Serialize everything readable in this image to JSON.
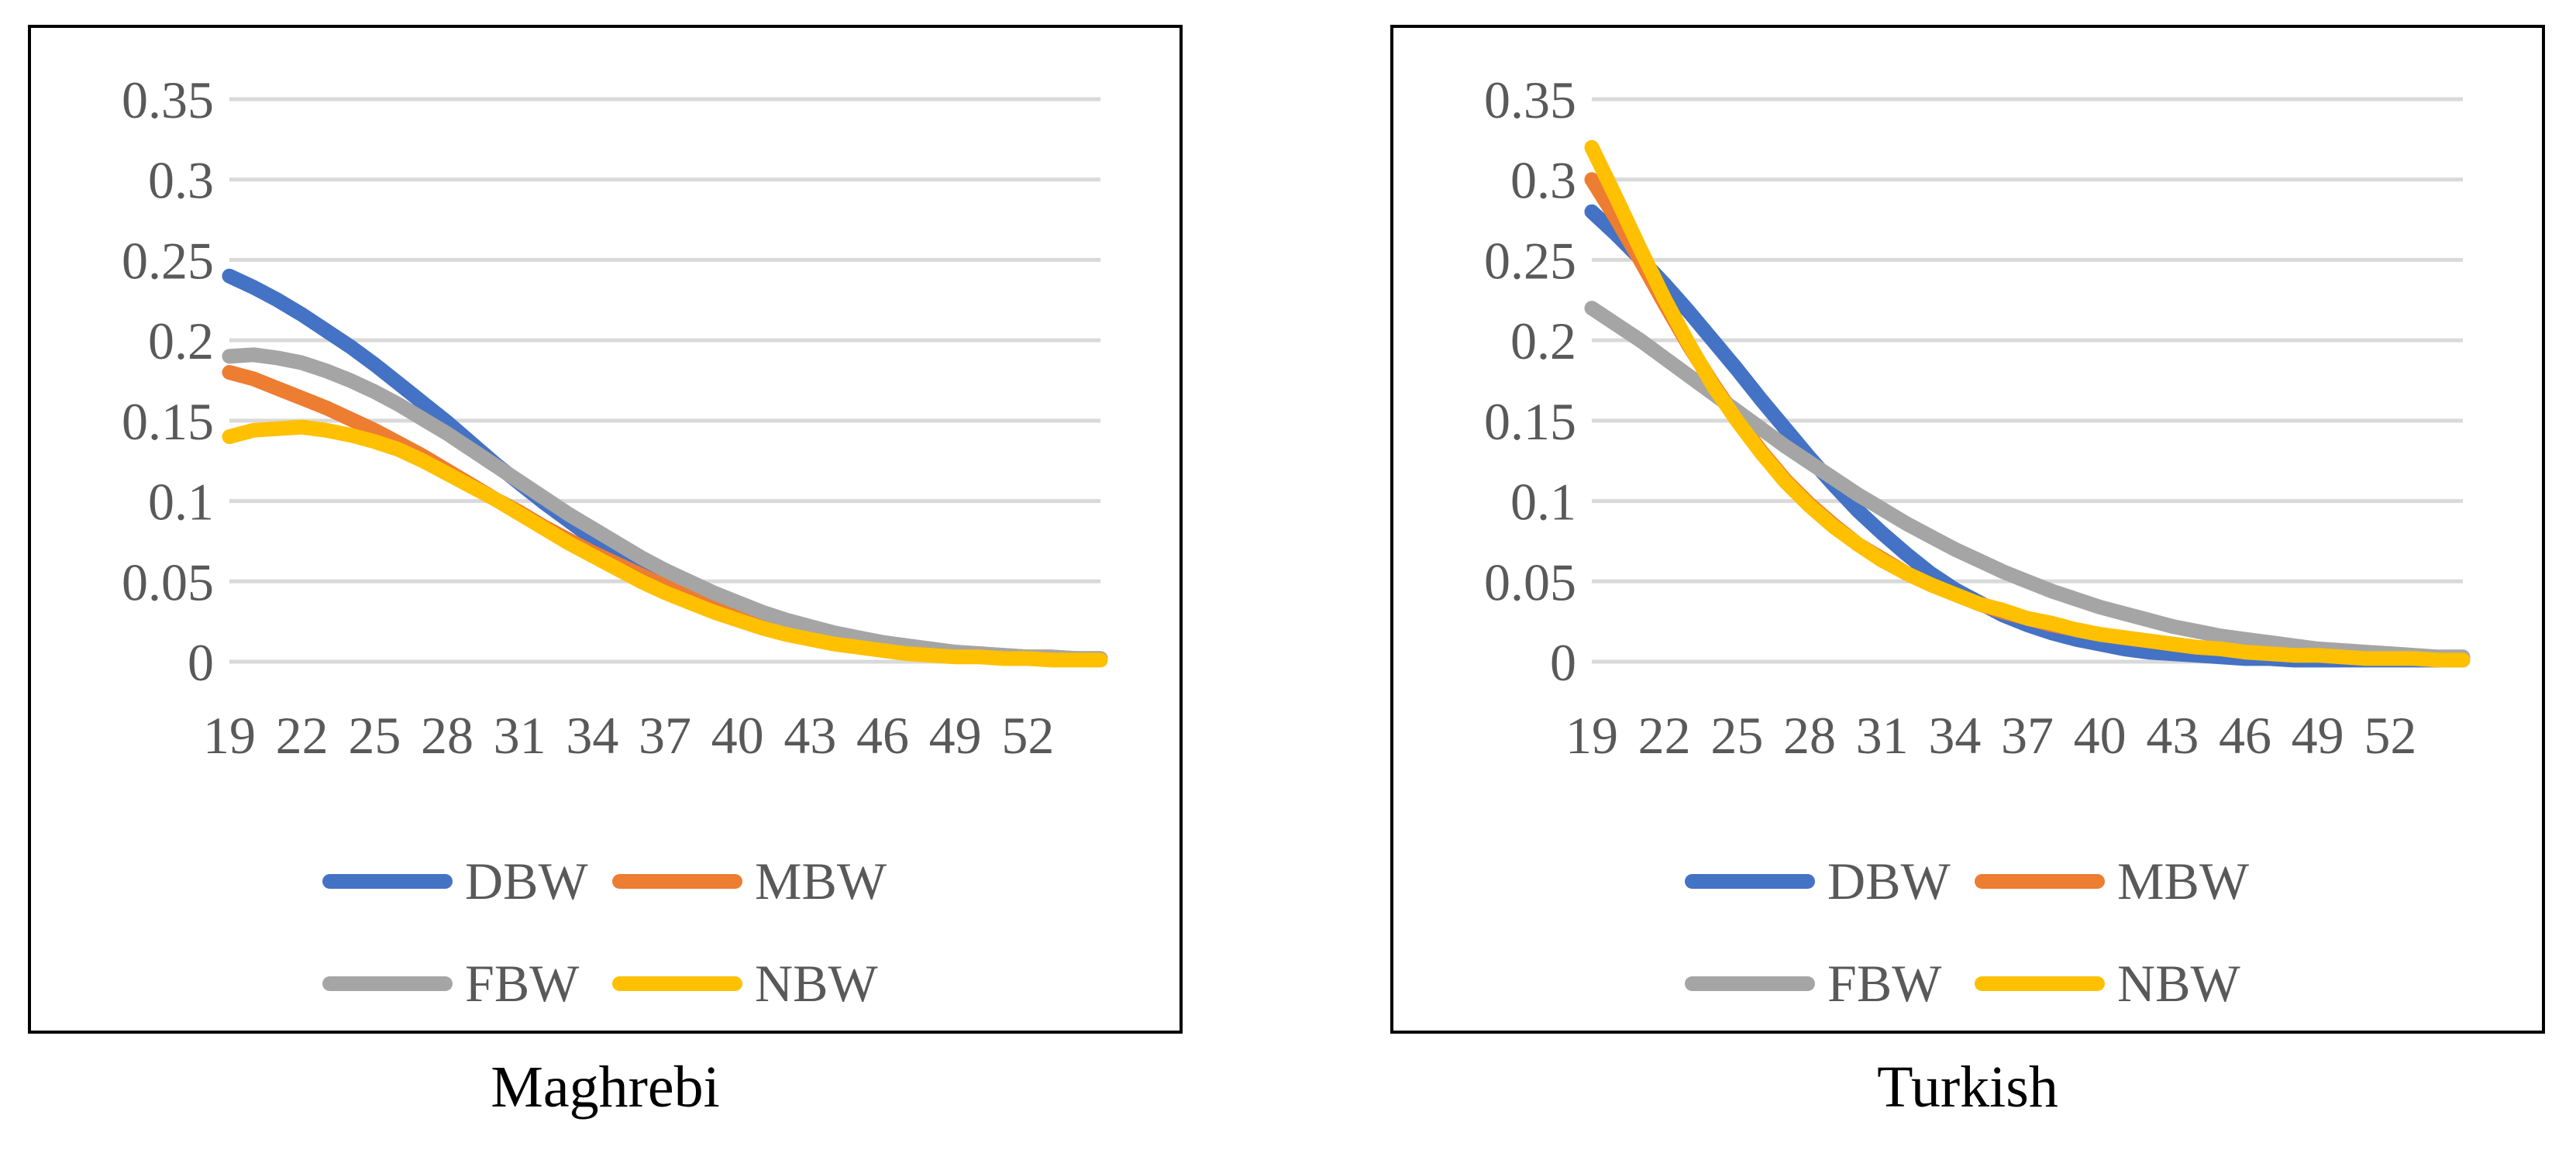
{
  "chart_data": [
    {
      "type": "line",
      "title": "Maghrebi",
      "xlabel": "",
      "ylabel": "",
      "x": [
        19,
        20,
        21,
        22,
        23,
        24,
        25,
        26,
        27,
        28,
        29,
        30,
        31,
        32,
        33,
        34,
        35,
        36,
        37,
        38,
        39,
        40,
        41,
        42,
        43,
        44,
        45,
        46,
        47,
        48,
        49,
        50,
        51,
        52,
        53,
        54,
        55
      ],
      "x_tick_labels": [
        "19",
        "22",
        "25",
        "28",
        "31",
        "34",
        "37",
        "40",
        "43",
        "46",
        "49",
        "52"
      ],
      "y_tick_labels": [
        "0",
        "0.05",
        "0.1",
        "0.15",
        "0.2",
        "0.25",
        "0.3",
        "0.35"
      ],
      "ylim": [
        0,
        0.35
      ],
      "grid": true,
      "legend_position": "bottom",
      "series": [
        {
          "name": "DBW",
          "color": "#4472C4",
          "values": [
            0.24,
            0.233,
            0.225,
            0.216,
            0.206,
            0.196,
            0.185,
            0.173,
            0.161,
            0.149,
            0.136,
            0.123,
            0.111,
            0.099,
            0.088,
            0.077,
            0.067,
            0.058,
            0.05,
            0.043,
            0.036,
            0.03,
            0.025,
            0.021,
            0.017,
            0.014,
            0.011,
            0.009,
            0.007,
            0.006,
            0.005,
            0.004,
            0.003,
            0.003,
            0.002,
            0.002,
            0.002
          ]
        },
        {
          "name": "MBW",
          "color": "#ED7D31",
          "values": [
            0.18,
            0.176,
            0.17,
            0.164,
            0.158,
            0.151,
            0.144,
            0.136,
            0.128,
            0.119,
            0.11,
            0.101,
            0.093,
            0.084,
            0.076,
            0.068,
            0.061,
            0.054,
            0.047,
            0.041,
            0.036,
            0.031,
            0.026,
            0.022,
            0.019,
            0.016,
            0.013,
            0.011,
            0.009,
            0.007,
            0.006,
            0.005,
            0.004,
            0.003,
            0.003,
            0.002,
            0.002
          ]
        },
        {
          "name": "FBW",
          "color": "#A5A5A5",
          "values": [
            0.19,
            0.191,
            0.189,
            0.186,
            0.181,
            0.175,
            0.168,
            0.16,
            0.151,
            0.142,
            0.132,
            0.122,
            0.112,
            0.102,
            0.092,
            0.083,
            0.074,
            0.065,
            0.057,
            0.05,
            0.043,
            0.037,
            0.031,
            0.026,
            0.022,
            0.018,
            0.015,
            0.012,
            0.01,
            0.008,
            0.006,
            0.005,
            0.004,
            0.003,
            0.003,
            0.002,
            0.002
          ]
        },
        {
          "name": "NBW",
          "color": "#FFC000",
          "values": [
            0.14,
            0.144,
            0.145,
            0.146,
            0.144,
            0.141,
            0.137,
            0.132,
            0.125,
            0.117,
            0.109,
            0.101,
            0.092,
            0.083,
            0.074,
            0.066,
            0.058,
            0.05,
            0.043,
            0.037,
            0.031,
            0.026,
            0.021,
            0.017,
            0.014,
            0.011,
            0.009,
            0.007,
            0.005,
            0.004,
            0.003,
            0.003,
            0.002,
            0.002,
            0.001,
            0.001,
            0.001
          ]
        }
      ]
    },
    {
      "type": "line",
      "title": "Turkish",
      "xlabel": "",
      "ylabel": "",
      "x": [
        19,
        20,
        21,
        22,
        23,
        24,
        25,
        26,
        27,
        28,
        29,
        30,
        31,
        32,
        33,
        34,
        35,
        36,
        37,
        38,
        39,
        40,
        41,
        42,
        43,
        44,
        45,
        46,
        47,
        48,
        49,
        50,
        51,
        52,
        53,
        54,
        55
      ],
      "x_tick_labels": [
        "19",
        "22",
        "25",
        "28",
        "31",
        "34",
        "37",
        "40",
        "43",
        "46",
        "49",
        "52"
      ],
      "y_tick_labels": [
        "0",
        "0.05",
        "0.1",
        "0.15",
        "0.2",
        "0.25",
        "0.3",
        "0.35"
      ],
      "ylim": [
        0,
        0.35
      ],
      "grid": true,
      "legend_position": "bottom",
      "series": [
        {
          "name": "DBW",
          "color": "#4472C4",
          "values": [
            0.28,
            0.266,
            0.251,
            0.235,
            0.218,
            0.2,
            0.182,
            0.163,
            0.145,
            0.127,
            0.11,
            0.094,
            0.08,
            0.067,
            0.055,
            0.045,
            0.037,
            0.029,
            0.023,
            0.018,
            0.014,
            0.011,
            0.008,
            0.006,
            0.005,
            0.004,
            0.003,
            0.002,
            0.002,
            0.001,
            0.001,
            0.001,
            0.001,
            0.001,
            0.001,
            0.001,
            0.001
          ]
        },
        {
          "name": "MBW",
          "color": "#ED7D31",
          "values": [
            0.3,
            0.276,
            0.25,
            0.223,
            0.197,
            0.173,
            0.151,
            0.131,
            0.113,
            0.098,
            0.085,
            0.073,
            0.064,
            0.055,
            0.048,
            0.042,
            0.036,
            0.031,
            0.027,
            0.023,
            0.02,
            0.017,
            0.015,
            0.013,
            0.011,
            0.009,
            0.008,
            0.007,
            0.006,
            0.005,
            0.004,
            0.004,
            0.003,
            0.003,
            0.002,
            0.002,
            0.002
          ]
        },
        {
          "name": "FBW",
          "color": "#A5A5A5",
          "values": [
            0.22,
            0.21,
            0.2,
            0.189,
            0.178,
            0.167,
            0.156,
            0.145,
            0.134,
            0.124,
            0.114,
            0.104,
            0.095,
            0.086,
            0.078,
            0.07,
            0.063,
            0.056,
            0.05,
            0.044,
            0.039,
            0.034,
            0.03,
            0.026,
            0.022,
            0.019,
            0.016,
            0.014,
            0.012,
            0.01,
            0.008,
            0.007,
            0.006,
            0.005,
            0.004,
            0.003,
            0.003
          ]
        },
        {
          "name": "NBW",
          "color": "#FFC000",
          "values": [
            0.32,
            0.289,
            0.257,
            0.226,
            0.198,
            0.172,
            0.15,
            0.13,
            0.112,
            0.097,
            0.084,
            0.073,
            0.063,
            0.055,
            0.048,
            0.042,
            0.036,
            0.032,
            0.027,
            0.024,
            0.02,
            0.017,
            0.015,
            0.013,
            0.011,
            0.009,
            0.008,
            0.006,
            0.005,
            0.004,
            0.004,
            0.003,
            0.002,
            0.002,
            0.002,
            0.001,
            0.001
          ]
        }
      ]
    }
  ]
}
